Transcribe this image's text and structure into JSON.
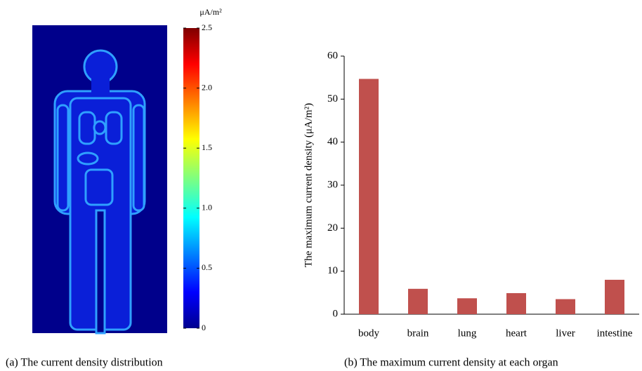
{
  "chart_data": [
    {
      "type": "heatmap",
      "caption": "(a) The current density distribution",
      "colorbar_label": "μA/m²",
      "clim": [
        0,
        2.5
      ],
      "cticks": [
        0,
        0.5,
        {
          "value": 1.0,
          "label": "1.0"
        },
        1.5,
        {
          "value": 2.0,
          "label": "2.0"
        },
        2.5
      ]
    },
    {
      "type": "bar",
      "caption": "(b) The maximum current density at each organ",
      "y_label": "The maximum current density (μA/m²)",
      "categories": [
        "body",
        "brain",
        "lung",
        "heart",
        "liver",
        "intestine"
      ],
      "values": [
        54.7,
        5.9,
        3.7,
        4.9,
        3.5,
        8.0
      ],
      "color": "#c0504d",
      "ylim": [
        0,
        60
      ],
      "yticks": [
        0,
        10,
        20,
        30,
        40,
        50,
        60
      ]
    }
  ]
}
